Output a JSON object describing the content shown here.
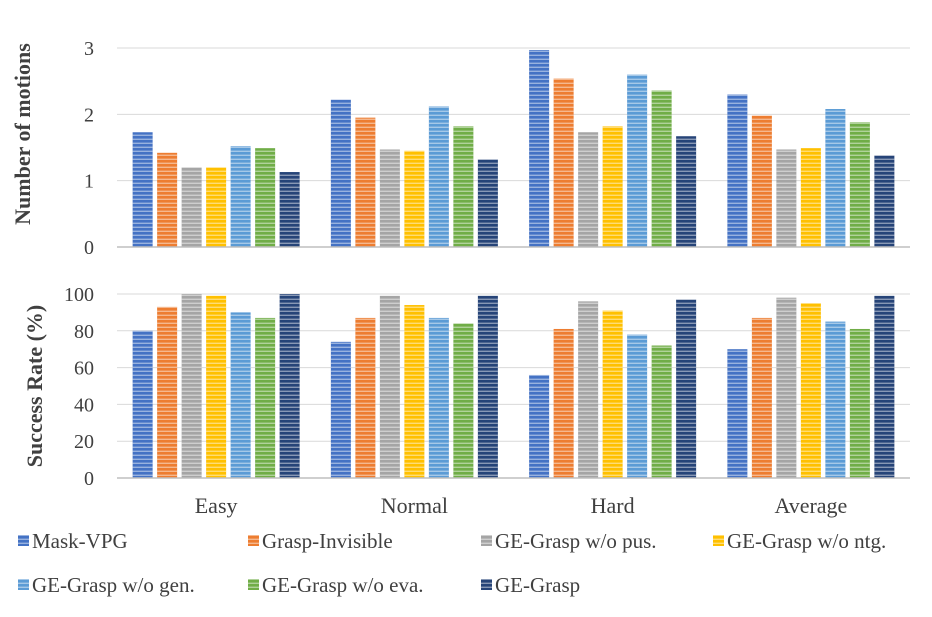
{
  "chart_data": {
    "type": "bar",
    "categories": [
      "Easy",
      "Normal",
      "Hard",
      "Average"
    ],
    "series": [
      {
        "name": "Mask-VPG",
        "color": "#4472C4"
      },
      {
        "name": "Grasp-Invisible",
        "color": "#ED7D31"
      },
      {
        "name": "GE-Grasp w/o pus.",
        "color": "#A5A5A5"
      },
      {
        "name": "GE-Grasp w/o ntg.",
        "color": "#FFC000"
      },
      {
        "name": "GE-Grasp w/o gen.",
        "color": "#5B9BD5"
      },
      {
        "name": "GE-Grasp w/o eva.",
        "color": "#70AD47"
      },
      {
        "name": "GE-Grasp",
        "color": "#264478"
      }
    ],
    "panels": [
      {
        "ylabel": "Number of motions",
        "ylim": [
          0,
          3
        ],
        "yticks": [
          "0",
          "1",
          "2",
          "3"
        ],
        "grid": true,
        "values": [
          [
            1.73,
            1.42,
            1.2,
            1.2,
            1.52,
            1.49,
            1.13
          ],
          [
            2.22,
            1.95,
            1.47,
            1.45,
            2.12,
            1.82,
            1.32
          ],
          [
            2.97,
            2.54,
            1.73,
            1.82,
            2.6,
            2.36,
            1.67
          ],
          [
            2.3,
            1.98,
            1.47,
            1.49,
            2.08,
            1.88,
            1.38
          ]
        ]
      },
      {
        "ylabel": "Success Rate (%)",
        "ylim": [
          0,
          100
        ],
        "yticks": [
          "0",
          "20",
          "40",
          "60",
          "80",
          "100"
        ],
        "grid": true,
        "values": [
          [
            80,
            93,
            100,
            99,
            90,
            87,
            100
          ],
          [
            74,
            87,
            99,
            94,
            87,
            84,
            99
          ],
          [
            56,
            81,
            96,
            91,
            78,
            72,
            97
          ],
          [
            70,
            87,
            98,
            95,
            85,
            81,
            99
          ]
        ]
      }
    ],
    "legend_position": "bottom"
  }
}
